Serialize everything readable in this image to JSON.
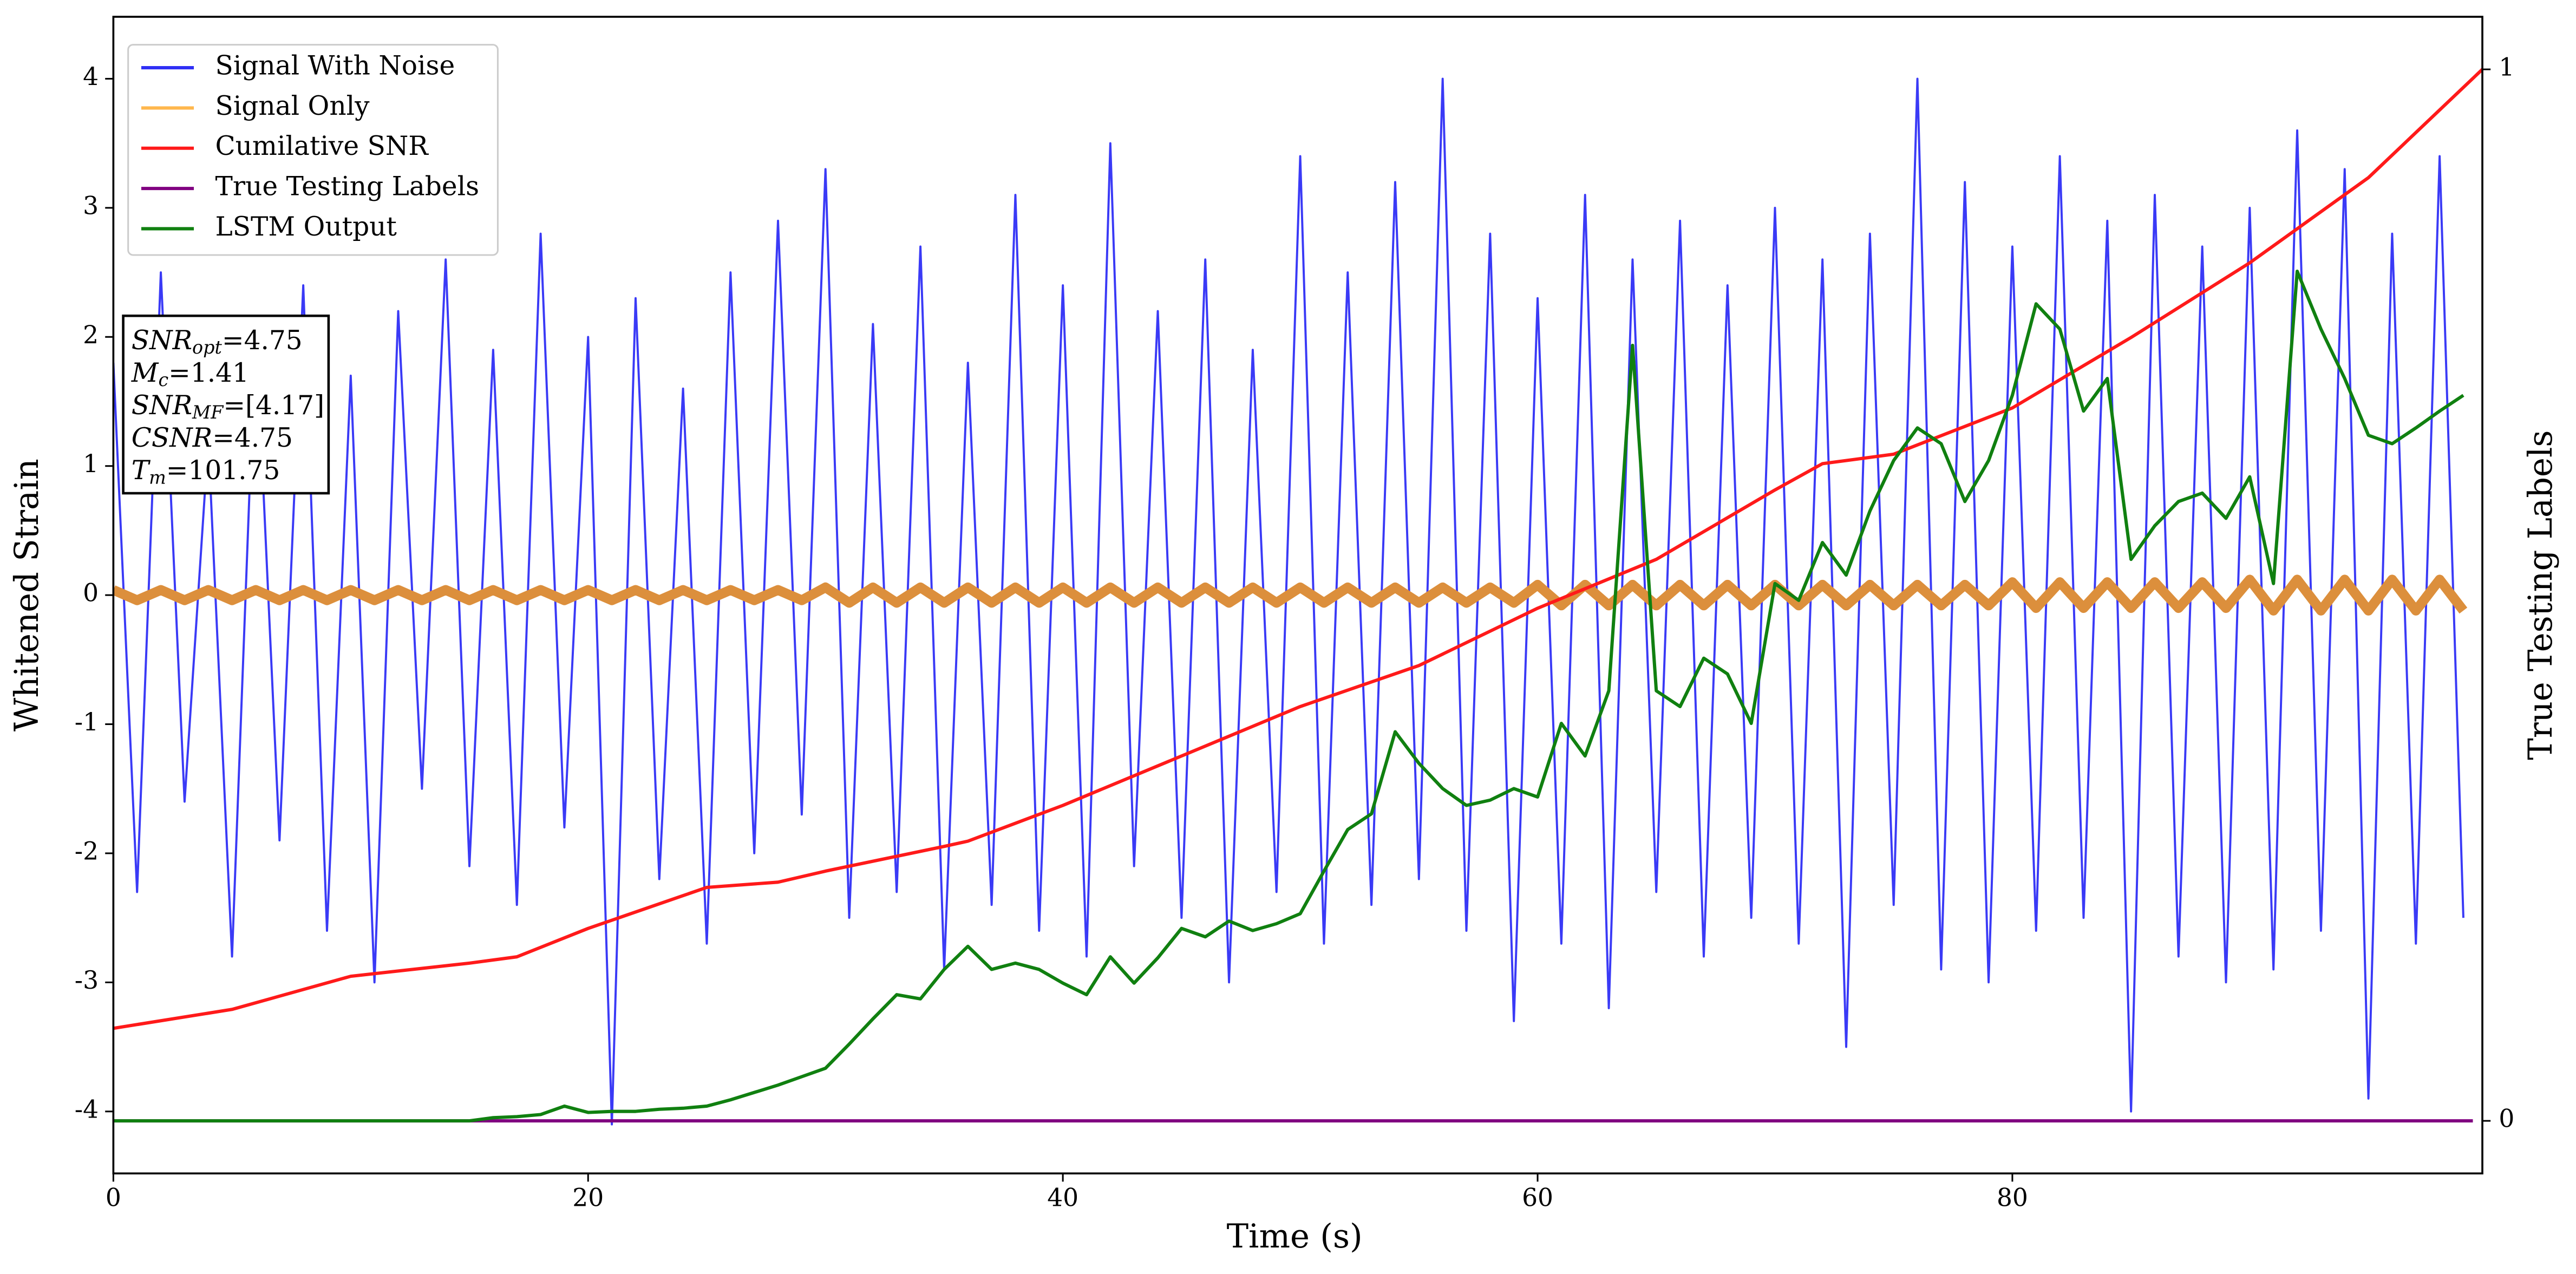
{
  "chart_data": {
    "type": "line",
    "xlabel": "Time (s)",
    "ylabel": "Whitened Strain",
    "y2label": "True Testing Labels",
    "xlim": [
      0,
      99.8
    ],
    "ylim": [
      -4.48,
      4.48
    ],
    "y2lim": [
      -0.05,
      1.05
    ],
    "xticks": [
      0,
      20,
      40,
      60,
      80
    ],
    "yticks": [
      -4,
      -3,
      -2,
      -1,
      0,
      1,
      2,
      3,
      4
    ],
    "y2ticks": [
      0,
      1
    ],
    "legend": "upper left",
    "x": [
      0,
      1,
      2,
      3,
      4,
      5,
      6,
      7,
      8,
      9,
      10,
      11,
      12,
      13,
      14,
      15,
      16,
      17,
      18,
      19,
      20,
      21,
      22,
      23,
      24,
      25,
      26,
      27,
      28,
      29,
      30,
      31,
      32,
      33,
      34,
      35,
      36,
      37,
      38,
      39,
      40,
      41,
      42,
      43,
      44,
      45,
      46,
      47,
      48,
      49,
      50,
      51,
      52,
      53,
      54,
      55,
      56,
      57,
      58,
      59,
      60,
      61,
      62,
      63,
      64,
      65,
      66,
      67,
      68,
      69,
      70,
      71,
      72,
      73,
      74,
      75,
      76,
      77,
      78,
      79,
      80,
      81,
      82,
      83,
      84,
      85,
      86,
      87,
      88,
      89,
      90,
      91,
      92,
      93,
      94,
      95,
      96,
      97,
      98,
      99
    ],
    "series": [
      {
        "name": "Signal With Noise",
        "color": "#2f2ff5",
        "values": [
          1.8,
          -2.3,
          2.5,
          -1.6,
          1.2,
          -2.8,
          2.1,
          -1.9,
          2.4,
          -2.6,
          1.7,
          -3.0,
          2.2,
          -1.5,
          2.6,
          -2.1,
          1.9,
          -2.4,
          2.8,
          -1.8,
          2.0,
          -4.1,
          2.3,
          -2.2,
          1.6,
          -2.7,
          2.5,
          -2.0,
          2.9,
          -1.7,
          3.3,
          -2.5,
          2.1,
          -2.3,
          2.7,
          -2.9,
          1.8,
          -2.4,
          3.1,
          -2.6,
          2.4,
          -2.8,
          3.5,
          -2.1,
          2.2,
          -2.5,
          2.6,
          -3.0,
          1.9,
          -2.3,
          3.4,
          -2.7,
          2.5,
          -2.4,
          3.2,
          -2.2,
          4.0,
          -2.6,
          2.8,
          -3.3,
          2.3,
          -2.7,
          3.1,
          -3.2,
          2.6,
          -2.3,
          2.9,
          -2.8,
          2.4,
          -2.5,
          3.0,
          -2.7,
          2.6,
          -3.5,
          2.8,
          -2.4,
          4.0,
          -2.9,
          3.2,
          -3.0,
          2.7,
          -2.6,
          3.4,
          -2.5,
          2.9,
          -4.0,
          3.1,
          -2.8,
          2.7,
          -3.0,
          3.0,
          -2.9,
          3.6,
          -2.6,
          3.3,
          -3.9,
          2.8,
          -2.7,
          3.4,
          -2.5
        ]
      },
      {
        "name": "Signal Only",
        "color": "#ffb74d",
        "band_color": "#dc8f3c",
        "values": [
          0.04,
          -0.04,
          0.04,
          -0.04,
          0.04,
          -0.04,
          0.04,
          -0.04,
          0.04,
          -0.04,
          0.04,
          -0.04,
          0.04,
          -0.04,
          0.04,
          -0.04,
          0.04,
          -0.04,
          0.04,
          -0.04,
          0.04,
          -0.04,
          0.04,
          -0.04,
          0.04,
          -0.04,
          0.04,
          -0.04,
          0.04,
          -0.04,
          0.06,
          -0.06,
          0.06,
          -0.06,
          0.06,
          -0.06,
          0.06,
          -0.06,
          0.06,
          -0.06,
          0.06,
          -0.06,
          0.06,
          -0.06,
          0.06,
          -0.06,
          0.06,
          -0.06,
          0.06,
          -0.06,
          0.06,
          -0.06,
          0.06,
          -0.06,
          0.06,
          -0.06,
          0.06,
          -0.06,
          0.06,
          -0.06,
          0.08,
          -0.08,
          0.08,
          -0.08,
          0.08,
          -0.08,
          0.08,
          -0.08,
          0.08,
          -0.08,
          0.08,
          -0.08,
          0.08,
          -0.08,
          0.08,
          -0.08,
          0.08,
          -0.08,
          0.08,
          -0.08,
          0.1,
          -0.1,
          0.1,
          -0.1,
          0.1,
          -0.1,
          0.1,
          -0.1,
          0.1,
          -0.1,
          0.12,
          -0.12,
          0.12,
          -0.12,
          0.12,
          -0.12,
          0.12,
          -0.12,
          0.12,
          -0.12
        ]
      },
      {
        "name": "Cumilative SNR",
        "color": "#ff1a1a",
        "axis": "y2",
        "x": [
          0,
          5,
          10,
          15,
          17,
          20,
          25,
          28,
          30,
          35,
          36,
          40,
          45,
          50,
          55,
          60,
          65,
          70,
          72,
          75,
          80,
          85,
          90,
          95,
          99.8
        ],
        "values": [
          0.088,
          0.106,
          0.1375,
          0.15,
          0.156,
          0.183,
          0.222,
          0.227,
          0.2375,
          0.261,
          0.266,
          0.3,
          0.347,
          0.394,
          0.433,
          0.4875,
          0.534,
          0.6,
          0.625,
          0.634,
          0.678,
          0.745,
          0.816,
          0.897,
          1.0
        ]
      },
      {
        "name": "True Testing Labels",
        "color": "#800080",
        "axis": "y2",
        "x": [
          0,
          99.4
        ],
        "values": [
          0,
          0
        ]
      },
      {
        "name": "LSTM Output",
        "color": "#108010",
        "axis": "y2",
        "values": [
          0,
          0,
          0,
          0,
          0,
          0,
          0,
          0,
          0,
          0,
          0,
          0,
          0,
          0,
          0,
          0,
          0.003,
          0.004,
          0.006,
          0.014,
          0.008,
          0.009,
          0.009,
          0.011,
          0.012,
          0.014,
          0.02,
          0.027,
          0.034,
          0.042,
          0.05,
          0.073,
          0.097,
          0.12,
          0.116,
          0.144,
          0.166,
          0.144,
          0.15,
          0.144,
          0.131,
          0.12,
          0.156,
          0.131,
          0.155,
          0.183,
          0.175,
          0.19,
          0.181,
          0.1875,
          0.197,
          0.2375,
          0.277,
          0.292,
          0.37,
          0.34,
          0.316,
          0.3,
          0.305,
          0.316,
          0.308,
          0.378,
          0.347,
          0.409,
          0.7375,
          0.409,
          0.394,
          0.44,
          0.425,
          0.378,
          0.511,
          0.495,
          0.55,
          0.519,
          0.58,
          0.628,
          0.659,
          0.644,
          0.589,
          0.628,
          0.69,
          0.777,
          0.753,
          0.675,
          0.706,
          0.534,
          0.566,
          0.589,
          0.597,
          0.573,
          0.6125,
          0.511,
          0.808,
          0.753,
          0.706,
          0.652,
          0.644,
          0.659,
          0.675,
          0.69
        ]
      }
    ],
    "annotation": [
      {
        "main": "SNR",
        "sub": "opt",
        "rest": "=4.75"
      },
      {
        "main": "M",
        "sub": "c",
        "rest": "=1.41"
      },
      {
        "main": "SNR",
        "sub": "MF",
        "rest": "=[4.17]"
      },
      {
        "main": "CSNR",
        "rest": "=4.75"
      },
      {
        "main": "T",
        "sub": "m",
        "rest": "=101.75"
      }
    ]
  }
}
